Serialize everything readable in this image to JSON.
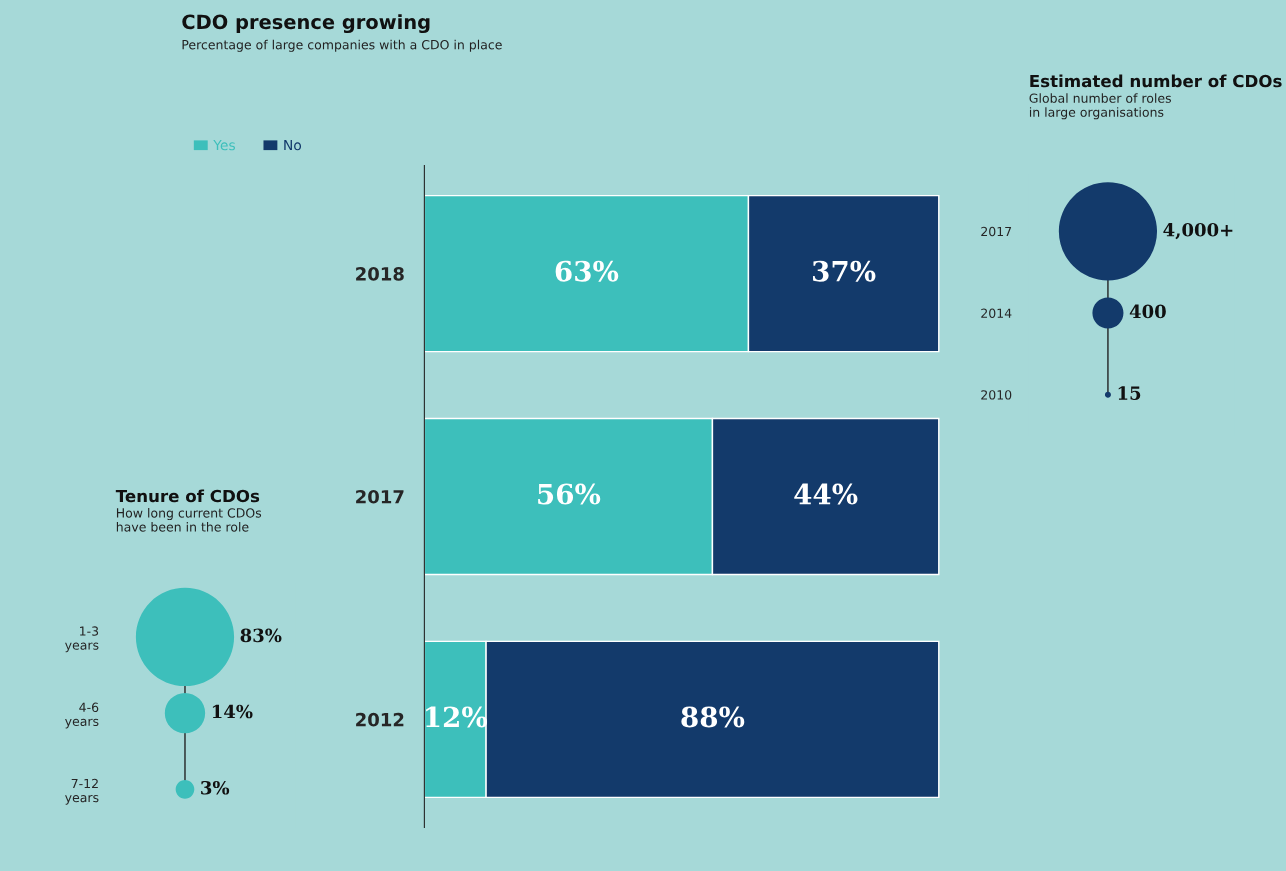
{
  "chart_data": [
    {
      "type": "bar",
      "title": "CDO presence growing",
      "subtitle": "Percentage of large companies with a CDO in place",
      "categories": [
        "2018",
        "2017",
        "2012"
      ],
      "orientation": "horizontal",
      "stacked": true,
      "tick_labels": "y",
      "legend": "top left",
      "series": [
        {
          "name": "Yes",
          "color": "#3dbfbb",
          "values": [
            63,
            56,
            12
          ],
          "value_labels": [
            "63%",
            "56%",
            "12%"
          ]
        },
        {
          "name": "No",
          "color": "#133a6b",
          "values": [
            37,
            44,
            88
          ],
          "value_labels": [
            "37%",
            "44%",
            "88%"
          ]
        }
      ]
    },
    {
      "type": "other",
      "title": "Estimated number of CDOs",
      "subtitle": "Global number of roles\nin large organisations",
      "categories": [
        "2017",
        "2014",
        "2010"
      ],
      "series": [
        {
          "color": "#133a6b",
          "values": [
            4000,
            400,
            15
          ],
          "value_labels": [
            "4,000+",
            "400",
            "15"
          ]
        }
      ]
    },
    {
      "type": "other",
      "title": "Tenure of CDOs",
      "subtitle": "How long current CDOs\nhave been in the role",
      "categories": [
        "1-3\nyears",
        "4-6\nyears",
        "7-12\nyears"
      ],
      "series": [
        {
          "color": "#3dbfbb",
          "values": [
            83,
            14,
            3
          ],
          "value_labels": [
            "83%",
            "14%",
            "3%"
          ]
        }
      ]
    }
  ]
}
